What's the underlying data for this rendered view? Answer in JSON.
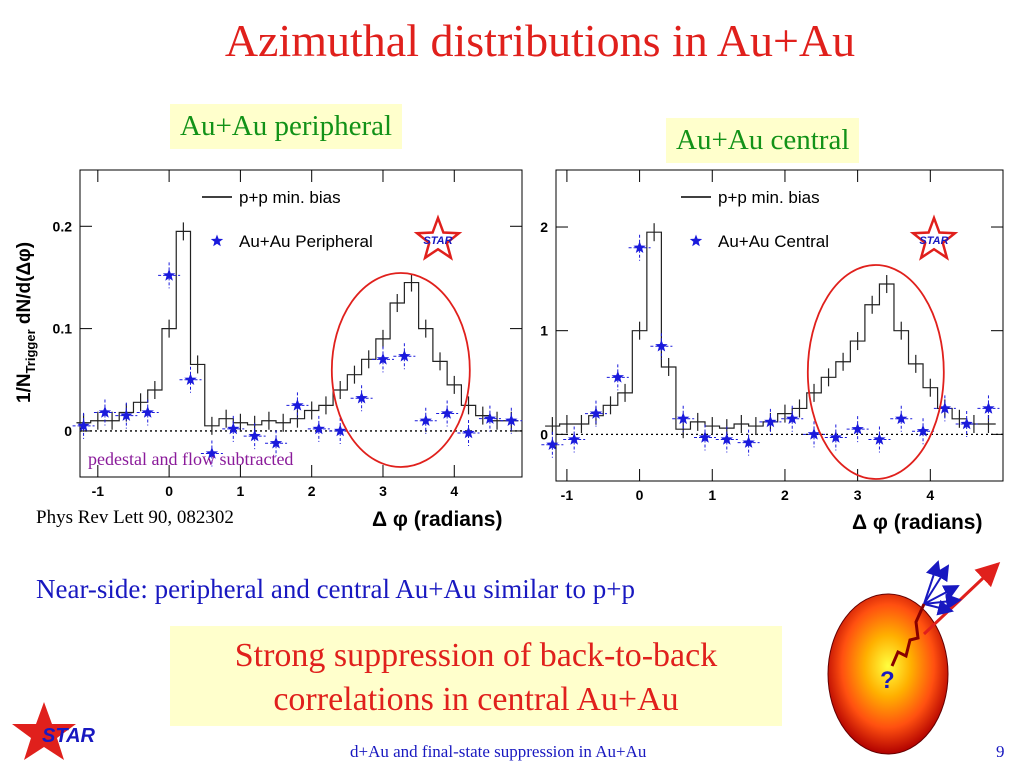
{
  "slide": {
    "title": "Azimuthal distributions in Au+Au",
    "citation": "Phys Rev Lett 90, 082302",
    "near_side_text": "Near-side: peripheral and central Au+Au similar to p+p",
    "suppression_text_line1": "Strong suppression of back-to-back",
    "suppression_text_line2": "correlations in central Au+Au",
    "footer": "d+Au and final-state suppression in Au+Au",
    "page_number": "9",
    "star_logo_text": "STAR",
    "cartoon_question": "?",
    "colors": {
      "title": "#e0201c",
      "blue_text": "#1818c0",
      "green_label": "#129218",
      "highlight_bg": "#ffffcc",
      "circle": "#e0201c",
      "marker": "#1a1adc",
      "pedestal_note": "#8a1a9a"
    }
  },
  "chart_data": [
    {
      "type": "line",
      "panel_label": "Au+Au peripheral",
      "ylabel": "1/N_Trigger dN/d(Δφ)",
      "ylabel_parts": {
        "main": "1/N",
        "sub": "Trigger",
        "rest": " dN/d(Δφ)"
      },
      "xlabel": "Δ φ (radians)",
      "xlim": [
        -1.25,
        4.95
      ],
      "ylim": [
        -0.045,
        0.255
      ],
      "xticks": [
        -1,
        0,
        1,
        2,
        3,
        4
      ],
      "xtick_labels": [
        "-1",
        "0",
        "1",
        "2",
        "3",
        "4"
      ],
      "yticks": [
        0,
        0.1,
        0.2
      ],
      "ytick_labels": [
        "0",
        "0.1",
        "0.2"
      ],
      "annotation": "pedestal and flow subtracted",
      "star_label": "STAR",
      "legend": {
        "position": "top-right",
        "entries": [
          "p+p min. bias",
          "Au+Au Peripheral"
        ]
      },
      "series": [
        {
          "name": "p+p min. bias",
          "style": "histogram",
          "x": [
            -1.2,
            -1.0,
            -0.8,
            -0.6,
            -0.4,
            -0.2,
            0.0,
            0.2,
            0.4,
            0.6,
            0.8,
            1.0,
            1.2,
            1.4,
            1.6,
            1.8,
            2.0,
            2.2,
            2.4,
            2.6,
            2.8,
            3.0,
            3.2,
            3.4,
            3.6,
            3.8,
            4.0,
            4.2,
            4.4,
            4.6,
            4.8
          ],
          "y": [
            0.008,
            0.01,
            0.01,
            0.018,
            0.028,
            0.04,
            0.1,
            0.195,
            0.065,
            0.005,
            0.012,
            0.008,
            0.006,
            0.01,
            0.008,
            0.012,
            0.02,
            0.025,
            0.04,
            0.055,
            0.07,
            0.09,
            0.125,
            0.145,
            0.1,
            0.068,
            0.045,
            0.025,
            0.015,
            0.01,
            0.01
          ]
        },
        {
          "name": "Au+Au Peripheral",
          "style": "markers",
          "x": [
            -1.2,
            -0.9,
            -0.6,
            -0.3,
            0.0,
            0.3,
            0.6,
            0.9,
            1.2,
            1.5,
            1.8,
            2.1,
            2.4,
            2.7,
            3.0,
            3.3,
            3.6,
            3.9,
            4.2,
            4.5,
            4.8
          ],
          "y": [
            0.005,
            0.018,
            0.015,
            0.018,
            0.152,
            0.05,
            -0.022,
            0.002,
            -0.005,
            -0.012,
            0.025,
            0.002,
            0.0,
            0.032,
            0.07,
            0.073,
            0.01,
            0.017,
            -0.002,
            0.012,
            0.01
          ]
        }
      ]
    },
    {
      "type": "line",
      "panel_label": "Au+Au central",
      "xlabel": "Δ φ (radians)",
      "xlim": [
        -1.15,
        5.0
      ],
      "ylim": [
        -0.45,
        2.55
      ],
      "xticks": [
        -1,
        0,
        1,
        2,
        3,
        4
      ],
      "xtick_labels": [
        "-1",
        "0",
        "1",
        "2",
        "3",
        "4"
      ],
      "yticks": [
        0,
        1,
        2
      ],
      "ytick_labels": [
        "0",
        "1",
        "2"
      ],
      "star_label": "STAR",
      "legend": {
        "position": "top-right",
        "entries": [
          "p+p min. bias",
          "Au+Au Central"
        ]
      },
      "series": [
        {
          "name": "p+p min. bias",
          "style": "histogram",
          "x": [
            -1.2,
            -1.0,
            -0.8,
            -0.6,
            -0.4,
            -0.2,
            0.0,
            0.2,
            0.4,
            0.6,
            0.8,
            1.0,
            1.2,
            1.4,
            1.6,
            1.8,
            2.0,
            2.2,
            2.4,
            2.6,
            2.8,
            3.0,
            3.2,
            3.4,
            3.6,
            3.8,
            4.0,
            4.2,
            4.4,
            4.6,
            4.8
          ],
          "y": [
            0.08,
            0.1,
            0.1,
            0.18,
            0.28,
            0.4,
            1.0,
            1.95,
            0.65,
            0.05,
            0.12,
            0.08,
            0.06,
            0.1,
            0.08,
            0.12,
            0.2,
            0.25,
            0.4,
            0.55,
            0.7,
            0.9,
            1.25,
            1.45,
            1.0,
            0.68,
            0.45,
            0.25,
            0.15,
            0.1,
            0.1
          ]
        },
        {
          "name": "Au+Au Central",
          "style": "markers",
          "x": [
            -1.2,
            -0.9,
            -0.6,
            -0.3,
            0.0,
            0.3,
            0.6,
            0.9,
            1.2,
            1.5,
            1.8,
            2.1,
            2.4,
            2.7,
            3.0,
            3.3,
            3.6,
            3.9,
            4.2,
            4.5,
            4.8
          ],
          "y": [
            -0.1,
            -0.05,
            0.2,
            0.55,
            1.8,
            0.85,
            0.15,
            -0.03,
            -0.05,
            -0.08,
            0.12,
            0.15,
            0.0,
            -0.03,
            0.05,
            -0.05,
            0.15,
            0.03,
            0.25,
            0.1,
            0.25
          ]
        }
      ]
    }
  ]
}
